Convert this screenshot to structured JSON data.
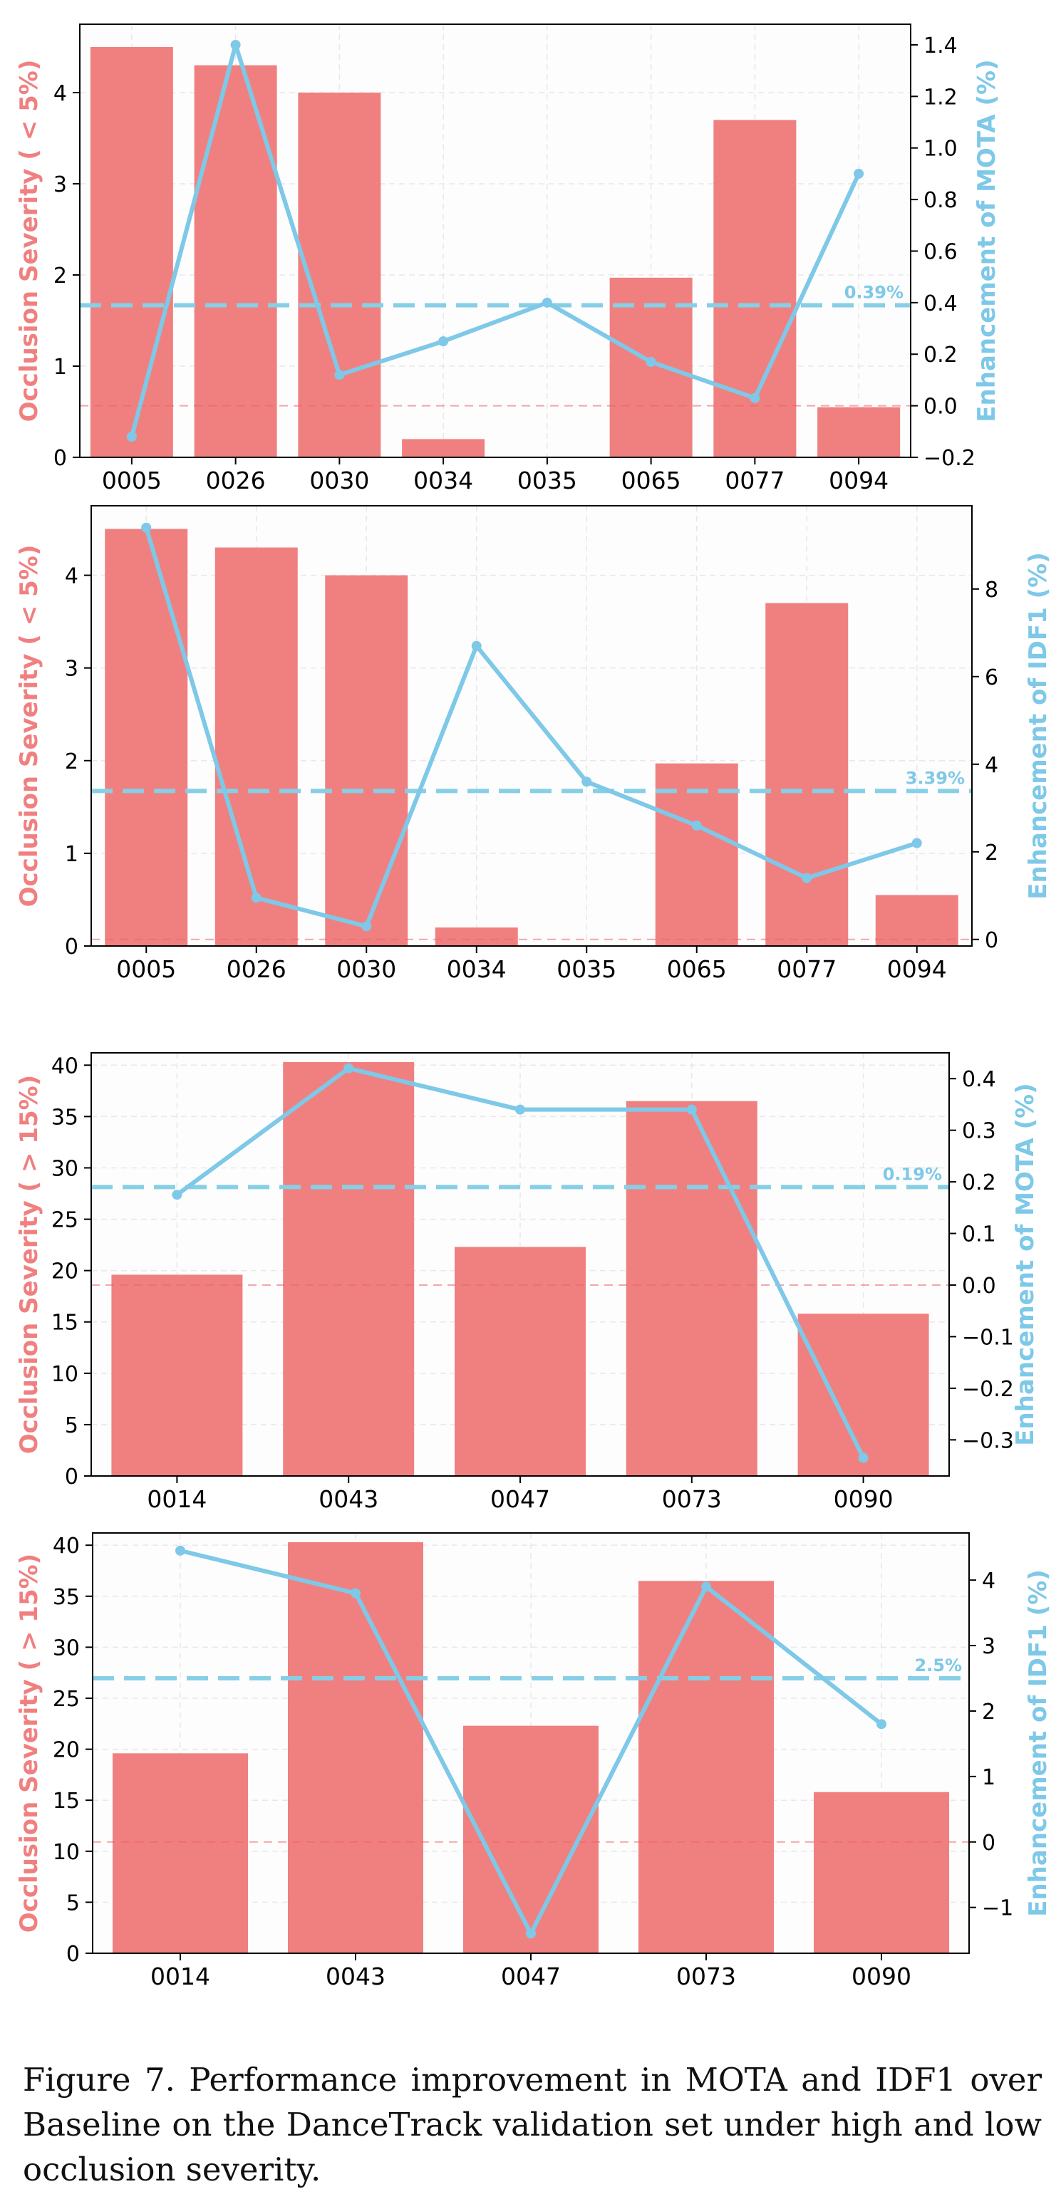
{
  "colors": {
    "bar": "#f08080",
    "line": "#7ec8e8",
    "left_axis_label": "#f08080",
    "right_axis_label": "#7ec8e8",
    "ref_red": "#f06060",
    "axis": "#000000",
    "grid": "#e8e8e8"
  },
  "chart_data": [
    {
      "id": "chart1",
      "type": "bar",
      "categories": [
        "0005",
        "0026",
        "0030",
        "0034",
        "0035",
        "0065",
        "0077",
        "0094"
      ],
      "series": [
        {
          "name": "Occlusion Severity",
          "axis": "left",
          "type": "bar",
          "values": [
            4.5,
            4.3,
            4.0,
            0.2,
            0.0,
            1.97,
            3.7,
            0.55
          ]
        },
        {
          "name": "Enhancement of MOTA",
          "axis": "right",
          "type": "line",
          "values": [
            -0.12,
            1.4,
            0.12,
            0.25,
            0.4,
            0.17,
            0.03,
            0.9
          ]
        }
      ],
      "ylabel": "Occlusion Severity ( < 5%)",
      "ylabel_right": "Enhancement of MOTA (%)",
      "ylim": [
        0,
        4.75
      ],
      "ylim_right": [
        -0.2,
        1.48
      ],
      "yticks": [
        0,
        1,
        2,
        3,
        4
      ],
      "yticks_right": [
        -0.2,
        0.0,
        0.2,
        0.4,
        0.6,
        0.8,
        1.0,
        1.2,
        1.4
      ],
      "ytick_labels_right": [
        "−0.2",
        "0.0",
        "0.2",
        "0.4",
        "0.6",
        "0.8",
        "1.0",
        "1.2",
        "1.4"
      ],
      "mean_line": 0.39,
      "mean_label": "0.39%",
      "zero_ref": 0.0
    },
    {
      "id": "chart2",
      "type": "bar",
      "categories": [
        "0005",
        "0026",
        "0030",
        "0034",
        "0035",
        "0065",
        "0077",
        "0094"
      ],
      "series": [
        {
          "name": "Occlusion Severity",
          "axis": "left",
          "type": "bar",
          "values": [
            4.5,
            4.3,
            4.0,
            0.2,
            0.0,
            1.97,
            3.7,
            0.55
          ]
        },
        {
          "name": "Enhancement of IDF1",
          "axis": "right",
          "type": "line",
          "values": [
            9.4,
            0.95,
            0.3,
            6.7,
            3.6,
            2.6,
            1.4,
            2.2
          ]
        }
      ],
      "ylabel": "Occlusion Severity ( < 5%)",
      "ylabel_right": "Enhancement of IDF1 (%)",
      "ylim": [
        0,
        4.75
      ],
      "ylim_right": [
        -0.15,
        9.9
      ],
      "yticks": [
        0,
        1,
        2,
        3,
        4
      ],
      "yticks_right": [
        0,
        2,
        4,
        6,
        8
      ],
      "ytick_labels_right": [
        "0",
        "2",
        "4",
        "6",
        "8"
      ],
      "mean_line": 3.39,
      "mean_label": "3.39%",
      "zero_ref": 0.0
    },
    {
      "id": "chart3",
      "type": "bar",
      "categories": [
        "0014",
        "0043",
        "0047",
        "0073",
        "0090"
      ],
      "series": [
        {
          "name": "Occlusion Severity",
          "axis": "left",
          "type": "bar",
          "values": [
            19.6,
            40.3,
            22.3,
            36.5,
            15.8
          ]
        },
        {
          "name": "Enhancement of MOTA",
          "axis": "right",
          "type": "line",
          "values": [
            0.175,
            0.42,
            0.34,
            0.34,
            -0.335
          ]
        }
      ],
      "ylabel": "Occlusion Severity ( > 15%)",
      "ylabel_right": "Enhancement of MOTA (%)",
      "ylim": [
        0,
        41.2
      ],
      "ylim_right": [
        -0.37,
        0.45
      ],
      "yticks": [
        0,
        5,
        10,
        15,
        20,
        25,
        30,
        35,
        40
      ],
      "yticks_right": [
        -0.3,
        -0.2,
        -0.1,
        0.0,
        0.1,
        0.2,
        0.3,
        0.4
      ],
      "ytick_labels_right": [
        "−0.3",
        "−0.2",
        "−0.1",
        "0.0",
        "0.1",
        "0.2",
        "0.3",
        "0.4"
      ],
      "mean_line": 0.19,
      "mean_label": "0.19%",
      "zero_ref": 0.0
    },
    {
      "id": "chart4",
      "type": "bar",
      "categories": [
        "0014",
        "0043",
        "0047",
        "0073",
        "0090"
      ],
      "series": [
        {
          "name": "Occlusion Severity",
          "axis": "left",
          "type": "bar",
          "values": [
            19.6,
            40.3,
            22.3,
            36.5,
            15.8
          ]
        },
        {
          "name": "Enhancement of IDF1",
          "axis": "right",
          "type": "line",
          "values": [
            4.45,
            3.8,
            -1.4,
            3.9,
            1.8
          ]
        }
      ],
      "ylabel": "Occlusion Severity ( > 15%)",
      "ylabel_right": "Enhancement of IDF1 (%)",
      "ylim": [
        0,
        41.2
      ],
      "ylim_right": [
        -1.7,
        4.72
      ],
      "yticks": [
        0,
        5,
        10,
        15,
        20,
        25,
        30,
        35,
        40
      ],
      "yticks_right": [
        -1,
        0,
        1,
        2,
        3,
        4
      ],
      "ytick_labels_right": [
        "−1",
        "0",
        "1",
        "2",
        "3",
        "4"
      ],
      "mean_line": 2.5,
      "mean_label": "2.5%",
      "zero_ref": 0.0
    }
  ],
  "caption": "Figure 7.  Performance improvement in MOTA and IDF1 over Baseline on the DanceTrack validation set under high and low occlusion severity."
}
